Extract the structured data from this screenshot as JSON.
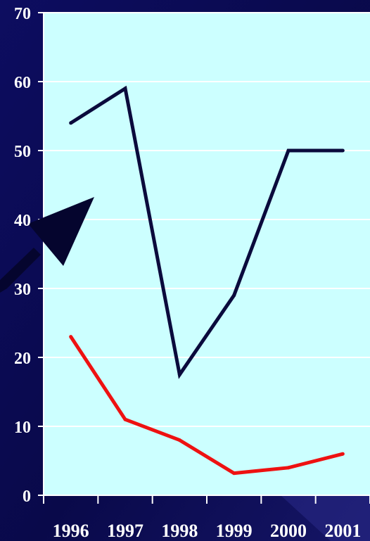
{
  "chart_data": {
    "type": "line",
    "title": "",
    "xlabel": "",
    "ylabel": "",
    "categories": [
      "1996",
      "1997",
      "1998",
      "1999",
      "2000",
      "2001"
    ],
    "yticks": [
      "0",
      "10",
      "20",
      "30",
      "40",
      "50",
      "60",
      "70"
    ],
    "ylim": [
      0,
      70
    ],
    "grid": true,
    "legend": "none",
    "series": [
      {
        "values": [
          54,
          59,
          17.5,
          29,
          50,
          50
        ],
        "color": "#0a0a3c"
      },
      {
        "values": [
          23,
          11,
          8,
          3.2,
          4,
          6
        ],
        "color": "#ee1111"
      }
    ],
    "colors": {
      "plot_background": "#ccffff",
      "page_background": "#0b0b52",
      "gridline": "#ffffff",
      "axis": "#ffffff",
      "arrow": "#05052e"
    }
  }
}
